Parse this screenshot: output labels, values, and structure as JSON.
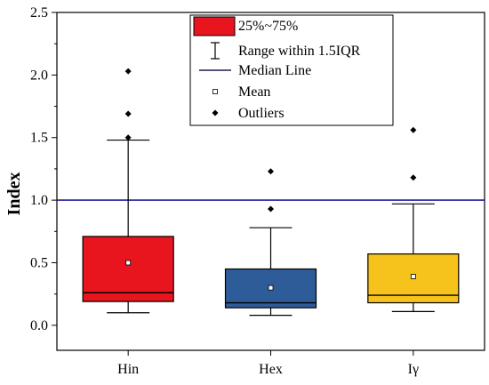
{
  "chart_data": {
    "type": "box",
    "title": "",
    "xlabel": "",
    "ylabel": "Index",
    "ylim": [
      -0.2,
      2.5
    ],
    "yticks": [
      0.0,
      0.5,
      1.0,
      1.5,
      2.0,
      2.5
    ],
    "ytick_labels": [
      "0.0",
      "0.5",
      "1.0",
      "1.5",
      "2.0",
      "2.5"
    ],
    "reference_line": {
      "y": 1.0,
      "color": "#1f1f9e"
    },
    "categories": [
      "Hin",
      "Hex",
      "Iγ"
    ],
    "boxes": [
      {
        "category": "Hin",
        "whisker_low": 0.1,
        "q1": 0.19,
        "median": 0.26,
        "q3": 0.71,
        "whisker_high": 1.48,
        "mean": 0.5,
        "outliers": [
          1.5,
          1.69,
          2.03
        ],
        "color": "#e8141e"
      },
      {
        "category": "Hex",
        "whisker_low": 0.08,
        "q1": 0.14,
        "median": 0.18,
        "q3": 0.45,
        "whisker_high": 0.78,
        "mean": 0.3,
        "outliers": [
          0.93,
          1.23
        ],
        "color": "#2e5c99"
      },
      {
        "category": "Iγ",
        "whisker_low": 0.11,
        "q1": 0.18,
        "median": 0.24,
        "q3": 0.57,
        "whisker_high": 0.97,
        "mean": 0.39,
        "outliers": [
          1.18,
          1.56
        ],
        "color": "#f6c21c"
      }
    ],
    "legend": {
      "position": "top-center",
      "entries": [
        {
          "label": "25%~75%",
          "symbol": "box"
        },
        {
          "label": "Range within 1.5IQR",
          "symbol": "whisker"
        },
        {
          "label": "Median Line",
          "symbol": "line"
        },
        {
          "label": "Mean",
          "symbol": "open-square"
        },
        {
          "label": "Outliers",
          "symbol": "diamond"
        }
      ]
    },
    "grid": false
  }
}
